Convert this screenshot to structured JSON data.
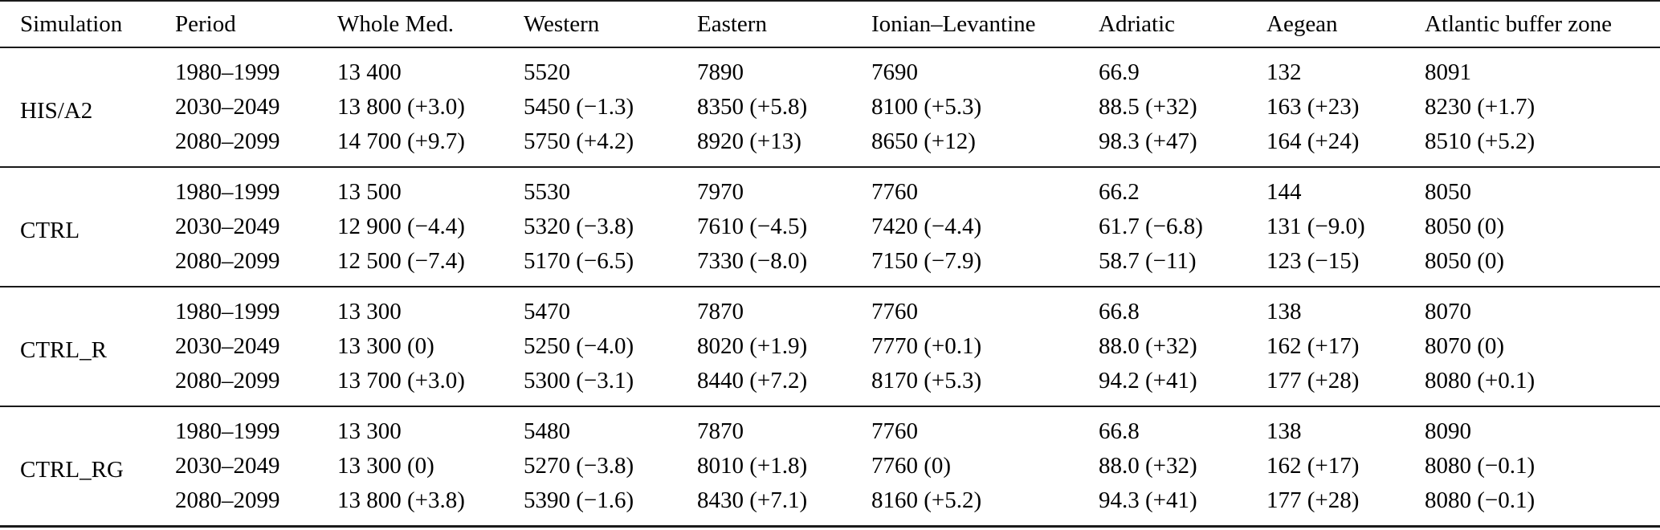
{
  "table": {
    "columns": [
      "Simulation",
      "Period",
      "Whole Med.",
      "Western",
      "Eastern",
      "Ionian–Levantine",
      "Adriatic",
      "Aegean",
      "Atlantic buffer zone"
    ],
    "groups": [
      {
        "simulation": "HIS/A2",
        "rows": [
          [
            "1980–1999",
            "13 400",
            "5520",
            "7890",
            "7690",
            "66.9",
            "132",
            "8091"
          ],
          [
            "2030–2049",
            "13 800 (+3.0)",
            "5450 (−1.3)",
            "8350 (+5.8)",
            "8100 (+5.3)",
            "88.5 (+32)",
            "163 (+23)",
            "8230 (+1.7)"
          ],
          [
            "2080–2099",
            "14 700 (+9.7)",
            "5750 (+4.2)",
            "8920 (+13)",
            "8650 (+12)",
            "98.3 (+47)",
            "164 (+24)",
            "8510 (+5.2)"
          ]
        ]
      },
      {
        "simulation": "CTRL",
        "rows": [
          [
            "1980–1999",
            "13 500",
            "5530",
            "7970",
            "7760",
            "66.2",
            "144",
            "8050"
          ],
          [
            "2030–2049",
            "12 900 (−4.4)",
            "5320 (−3.8)",
            "7610 (−4.5)",
            "7420 (−4.4)",
            "61.7 (−6.8)",
            "131 (−9.0)",
            "8050 (0)"
          ],
          [
            "2080–2099",
            "12 500 (−7.4)",
            "5170 (−6.5)",
            "7330 (−8.0)",
            "7150 (−7.9)",
            "58.7 (−11)",
            "123 (−15)",
            "8050 (0)"
          ]
        ]
      },
      {
        "simulation": "CTRL_R",
        "rows": [
          [
            "1980–1999",
            "13 300",
            "5470",
            "7870",
            "7760",
            "66.8",
            "138",
            "8070"
          ],
          [
            "2030–2049",
            "13 300 (0)",
            "5250 (−4.0)",
            "8020 (+1.9)",
            "7770 (+0.1)",
            "88.0 (+32)",
            "162 (+17)",
            "8070 (0)"
          ],
          [
            "2080–2099",
            "13 700 (+3.0)",
            "5300 (−3.1)",
            "8440 (+7.2)",
            "8170 (+5.3)",
            "94.2 (+41)",
            "177 (+28)",
            "8080 (+0.1)"
          ]
        ]
      },
      {
        "simulation": "CTRL_RG",
        "rows": [
          [
            "1980–1999",
            "13 300",
            "5480",
            "7870",
            "7760",
            "66.8",
            "138",
            "8090"
          ],
          [
            "2030–2049",
            "13 300 (0)",
            "5270 (−3.8)",
            "8010 (+1.8)",
            "7760 (0)",
            "88.0 (+32)",
            "162 (+17)",
            "8080 (−0.1)"
          ],
          [
            "2080–2099",
            "13 800 (+3.8)",
            "5390 (−1.6)",
            "8430 (+7.1)",
            "8160 (+5.2)",
            "94.3 (+41)",
            "177 (+28)",
            "8080 (−0.1)"
          ]
        ]
      }
    ]
  }
}
